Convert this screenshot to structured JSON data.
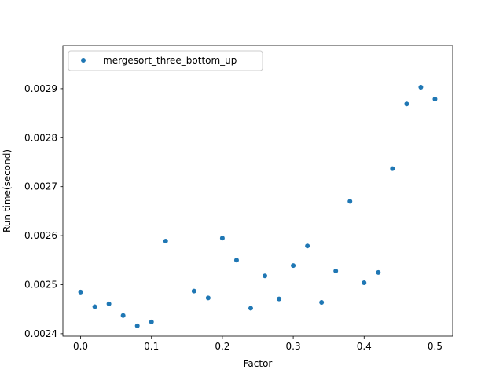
{
  "chart_data": {
    "type": "scatter",
    "title": "",
    "xlabel": "Factor",
    "ylabel": "Run time(second)",
    "xlim": [
      -0.025,
      0.525
    ],
    "ylim": [
      0.002395,
      0.002988
    ],
    "xticks": [
      0.0,
      0.1,
      0.2,
      0.3,
      0.4,
      0.5
    ],
    "xtick_labels": [
      "0.0",
      "0.1",
      "0.2",
      "0.3",
      "0.4",
      "0.5"
    ],
    "yticks": [
      0.0024,
      0.0025,
      0.0026,
      0.0027,
      0.0028,
      0.0029
    ],
    "ytick_labels": [
      "0.0024",
      "0.0025",
      "0.0026",
      "0.0027",
      "0.0028",
      "0.0029"
    ],
    "grid": false,
    "legend_position": "top-left",
    "series": [
      {
        "name": "mergesort_three_bottom_up",
        "color": "#1f77b4",
        "x": [
          0.0,
          0.02,
          0.04,
          0.06,
          0.08,
          0.1,
          0.12,
          0.16,
          0.18,
          0.2,
          0.22,
          0.24,
          0.26,
          0.28,
          0.3,
          0.32,
          0.34,
          0.36,
          0.38,
          0.4,
          0.42,
          0.44,
          0.46,
          0.48,
          0.5
        ],
        "y": [
          0.002485,
          0.002455,
          0.002461,
          0.002437,
          0.002416,
          0.002424,
          0.002589,
          0.002487,
          0.002473,
          0.002595,
          0.00255,
          0.002452,
          0.002518,
          0.002471,
          0.002539,
          0.002579,
          0.002464,
          0.002528,
          0.00267,
          0.002504,
          0.002525,
          0.002737,
          0.002869,
          0.002903,
          0.002879
        ]
      }
    ]
  }
}
